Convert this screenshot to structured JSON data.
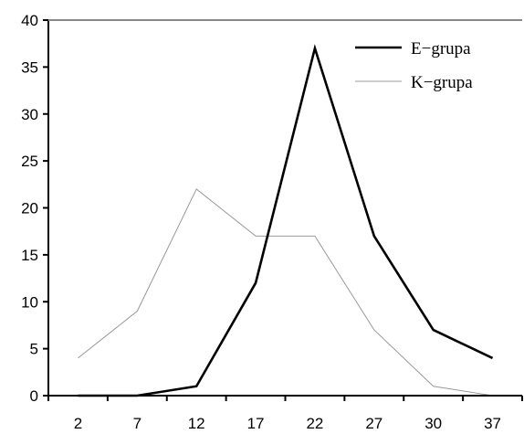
{
  "chart_data": {
    "type": "line",
    "categories": [
      "2",
      "7",
      "12",
      "17",
      "22",
      "27",
      "30",
      "37"
    ],
    "yticks": [
      "0",
      "5",
      "10",
      "15",
      "20",
      "25",
      "30",
      "35",
      "40"
    ],
    "ylim": [
      0,
      40
    ],
    "title": "",
    "xlabel": "",
    "ylabel": "",
    "grid": false,
    "legend_position": "top-right",
    "series": [
      {
        "name": "E−grupa",
        "values": [
          0,
          0,
          1,
          12,
          37,
          17,
          7,
          4
        ],
        "color": "#000000",
        "style": "thick"
      },
      {
        "name": "K−grupa",
        "values": [
          4,
          9,
          22,
          17,
          17,
          7,
          1,
          0
        ],
        "color": "#999999",
        "style": "thin"
      }
    ]
  }
}
